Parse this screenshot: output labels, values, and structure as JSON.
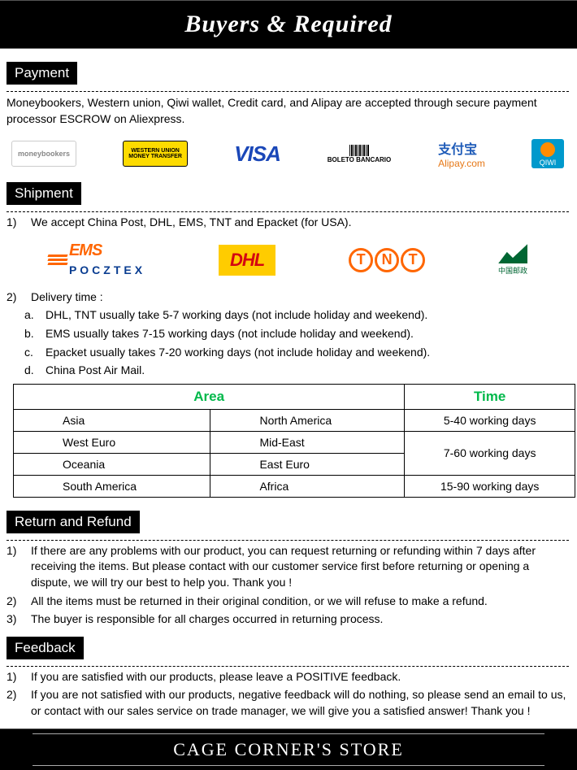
{
  "banner": {
    "title": "Buyers & Required"
  },
  "payment": {
    "header": "Payment",
    "text": "Moneybookers, Western union, Qiwi wallet, Credit card, and Alipay are accepted through secure payment processor ESCROW on Aliexpress.",
    "logos": {
      "moneybookers": "moneybookers",
      "wu_top": "WESTERN UNION",
      "wu_bottom": "MONEY TRANSFER",
      "visa": "VISA",
      "boleto": "BOLETO BANCARIO",
      "alipay_cn": "支付宝",
      "alipay_en": "Alipay.com",
      "qiwi": "QIWI"
    }
  },
  "shipment": {
    "header": "Shipment",
    "line1": "We accept China Post, DHL, EMS, TNT and Epacket (for USA).",
    "logos": {
      "ems": "EMS",
      "ems_sub": "POCZTEX",
      "dhl": "DHL",
      "tnt": "TNT",
      "chinapost": "中国邮政"
    },
    "line2": "Delivery time :",
    "sub_a": "DHL, TNT usually take 5-7 working days (not include holiday and weekend).",
    "sub_b": "EMS usually takes 7-15 working days (not include holiday and weekend).",
    "sub_c": "Epacket usually takes  7-20 working days (not include holiday and weekend).",
    "sub_d": "China Post Air Mail.",
    "table": {
      "header_area": "Area",
      "header_time": "Time",
      "rows": [
        {
          "a1": "Asia",
          "a2": "North America",
          "time": "5-40  working days"
        },
        {
          "a1": "West Euro",
          "a2": "Mid-East",
          "time": "7-60  working days"
        },
        {
          "a1": "Oceania",
          "a2": "East Euro",
          "time": ""
        },
        {
          "a1": "South America",
          "a2": "Africa",
          "time": "15-90  working days"
        }
      ]
    }
  },
  "return": {
    "header": "Return and Refund",
    "l1": "If there are any problems with our product, you can request returning or refunding within 7 days after receiving the items. But please contact with our customer service first before returning or opening a dispute, we will try our best to  help you. Thank you !",
    "l2": "All the items must be returned in their original condition, or we will refuse to make a refund.",
    "l3": "The buyer is responsible for all charges occurred in returning process."
  },
  "feedback": {
    "header": "Feedback",
    "l1": "If you are satisfied with our products, please leave a POSITIVE feedback.",
    "l2": "If you are not satisfied with our products, negative feedback will do nothing, so please send an email to us, or contact with our sales service on trade manager, we will give you a satisfied answer! Thank you !"
  },
  "footer": {
    "store": "CAGE CORNER'S STORE"
  },
  "colors": {
    "black": "#000000",
    "white": "#ffffff",
    "green_header": "#00b84a",
    "visa_blue": "#1a47b8",
    "wu_yellow": "#fddb00",
    "dhl_yellow": "#ffcc00",
    "dhl_red": "#d40511",
    "orange": "#ff6600",
    "qiwi_blue": "#0099cc",
    "chinapost_green": "#006633"
  }
}
